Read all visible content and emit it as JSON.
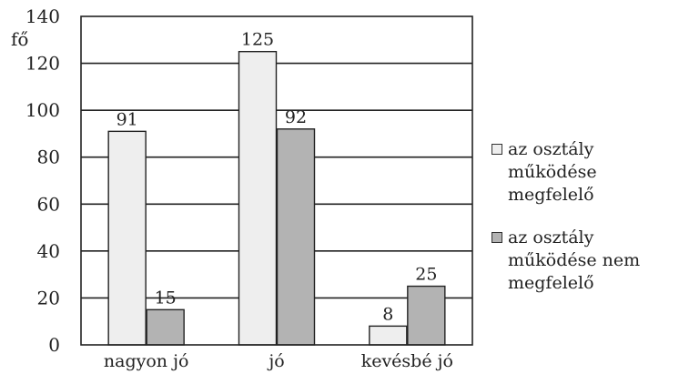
{
  "chart_data": {
    "type": "bar",
    "ylabel": "fő",
    "ylim": [
      0,
      140
    ],
    "yticks": [
      "0",
      "20",
      "40",
      "60",
      "80",
      "100",
      "120",
      "140"
    ],
    "categories": [
      "nagyon jó",
      "jó",
      "kevésbé jó"
    ],
    "grid": true,
    "legend_position": "right",
    "series": [
      {
        "name": "az osztály működése megfelelő",
        "values": [
          91,
          125,
          8
        ],
        "color": "#eeeeee"
      },
      {
        "name": "az osztály működése nem megfelelő",
        "values": [
          15,
          92,
          25
        ],
        "color": "#b3b3b3"
      }
    ]
  }
}
